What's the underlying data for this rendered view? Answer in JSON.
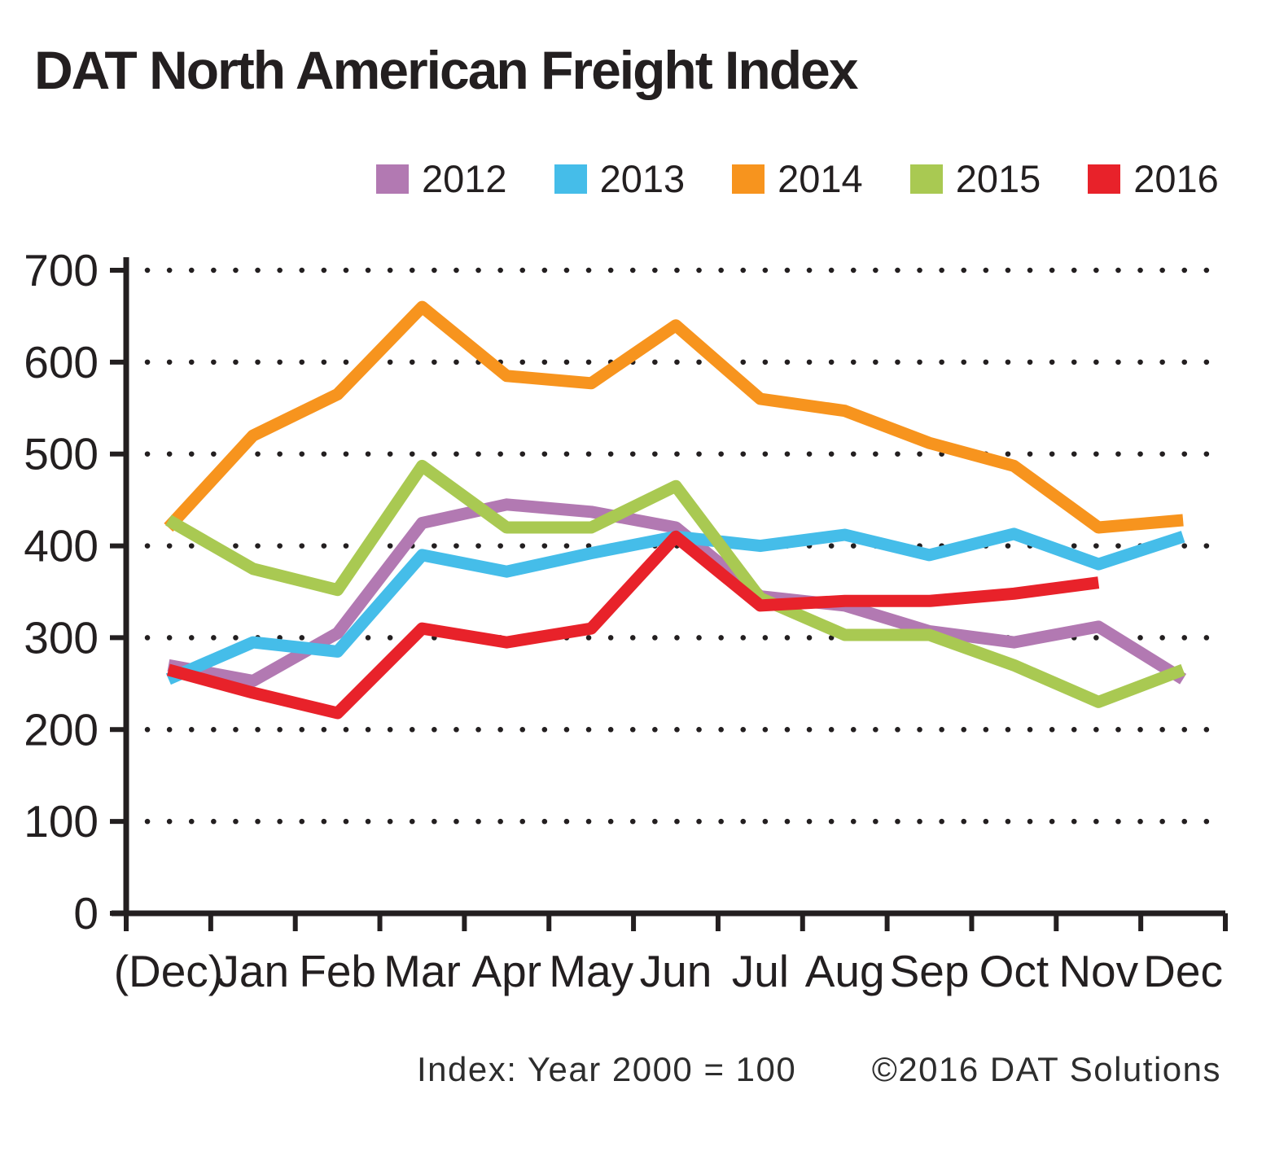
{
  "chart_data": {
    "type": "line",
    "title": "DAT North American Freight Index",
    "xlabel": "",
    "ylabel": "",
    "categories": [
      "(Dec)",
      "Jan",
      "Feb",
      "Mar",
      "Apr",
      "May",
      "Jun",
      "Jul",
      "Aug",
      "Sep",
      "Oct",
      "Nov",
      "Dec"
    ],
    "series": [
      {
        "name": "2012",
        "color": "#b279b2",
        "values": [
          270,
          253,
          305,
          425,
          445,
          437,
          420,
          345,
          335,
          307,
          295,
          312,
          255
        ]
      },
      {
        "name": "2013",
        "color": "#45bde9",
        "values": [
          255,
          295,
          285,
          390,
          372,
          392,
          410,
          400,
          412,
          390,
          413,
          380,
          410
        ]
      },
      {
        "name": "2014",
        "color": "#f7941e",
        "values": [
          420,
          520,
          565,
          660,
          585,
          577,
          640,
          560,
          547,
          512,
          487,
          420,
          428
        ]
      },
      {
        "name": "2015",
        "color": "#a9c952",
        "values": [
          428,
          375,
          352,
          487,
          420,
          420,
          465,
          343,
          303,
          303,
          270,
          230,
          265
        ]
      },
      {
        "name": "2016",
        "color": "#e8222a",
        "values": [
          265,
          240,
          218,
          310,
          295,
          310,
          410,
          335,
          340,
          340,
          348,
          360,
          null
        ]
      }
    ],
    "ylim": [
      0,
      700
    ],
    "ytick_step": 100,
    "grid": "dotted-horizontal",
    "legend_position": "top",
    "axis_color": "#231f20",
    "footer_left": "Index: Year 2000 = 100",
    "footer_right": "©2016 DAT Solutions"
  }
}
